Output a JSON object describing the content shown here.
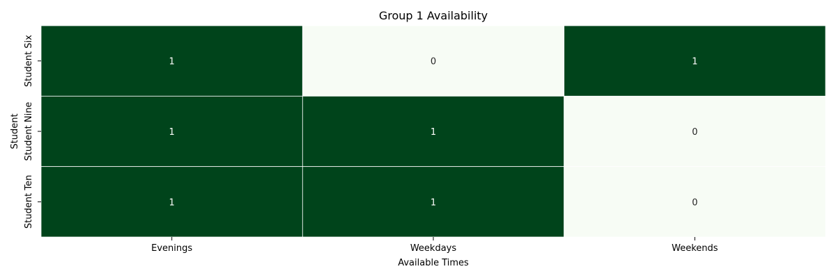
{
  "chart_data": {
    "type": "heatmap",
    "title": "Group 1 Availability",
    "xlabel": "Available Times",
    "ylabel": "Student",
    "x_categories": [
      "Evenings",
      "Weekdays",
      "Weekends"
    ],
    "y_categories": [
      "Student Six",
      "Student Nine",
      "Student Ten"
    ],
    "values": [
      [
        1,
        0,
        1
      ],
      [
        1,
        1,
        0
      ],
      [
        1,
        1,
        0
      ]
    ],
    "value_range": [
      0,
      1
    ],
    "colors": {
      "low": "#f7fcf5",
      "high": "#00441b",
      "cell_border": "#ffffff",
      "label_on_dark": "#ffffff",
      "label_on_light": "#262626"
    }
  }
}
